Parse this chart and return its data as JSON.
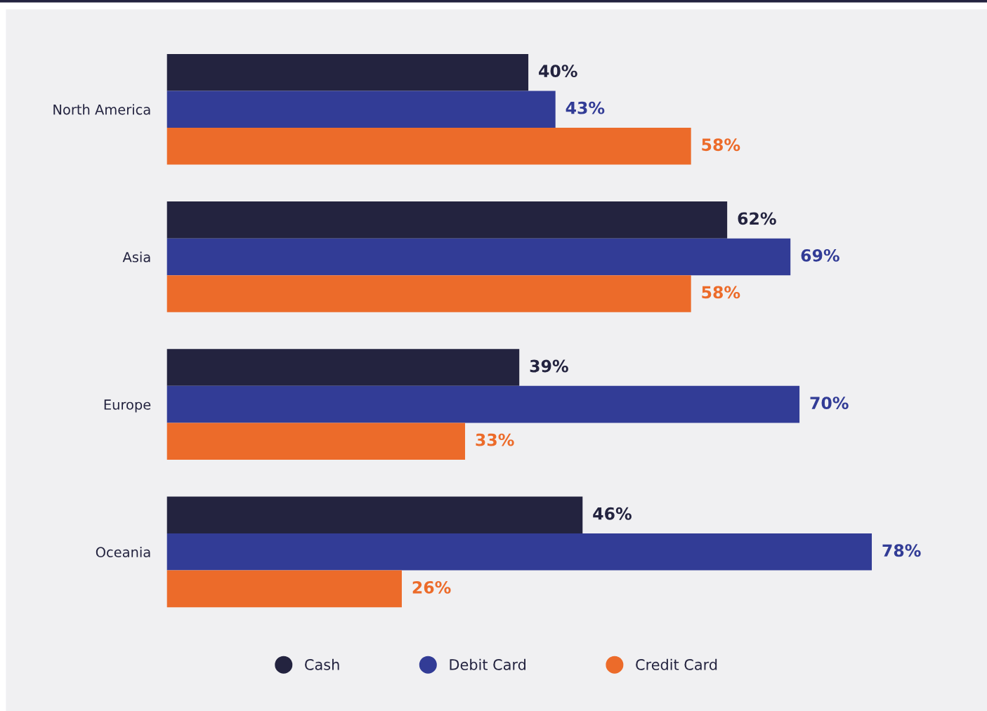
{
  "chart_data": {
    "type": "bar",
    "orientation": "horizontal",
    "categories": [
      "North America",
      "Asia",
      "Europe",
      "Oceania"
    ],
    "series": [
      {
        "name": "Cash",
        "color": "#23233f",
        "values": [
          40,
          62,
          39,
          46
        ],
        "value_labels": [
          "40%",
          "62%",
          "39%",
          "46%"
        ]
      },
      {
        "name": "Debit Card",
        "color": "#323c96",
        "values": [
          43,
          69,
          70,
          78
        ],
        "value_labels": [
          "43%",
          "69%",
          "70%",
          "78%"
        ]
      },
      {
        "name": "Credit Card",
        "color": "#ec6b2a",
        "values": [
          58,
          58,
          33,
          26
        ],
        "value_labels": [
          "58%",
          "58%",
          "33%",
          "26%"
        ]
      }
    ],
    "legend": "bottom",
    "grid": false
  }
}
